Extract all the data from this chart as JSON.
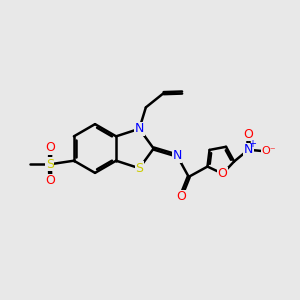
{
  "bg_color": "#e8e8e8",
  "lc": "#000000",
  "lw": 1.8,
  "fs": 9,
  "atom_colors": {
    "N": "#0000ff",
    "O": "#ff0000",
    "S": "#cccc00",
    "C": "#000000"
  }
}
